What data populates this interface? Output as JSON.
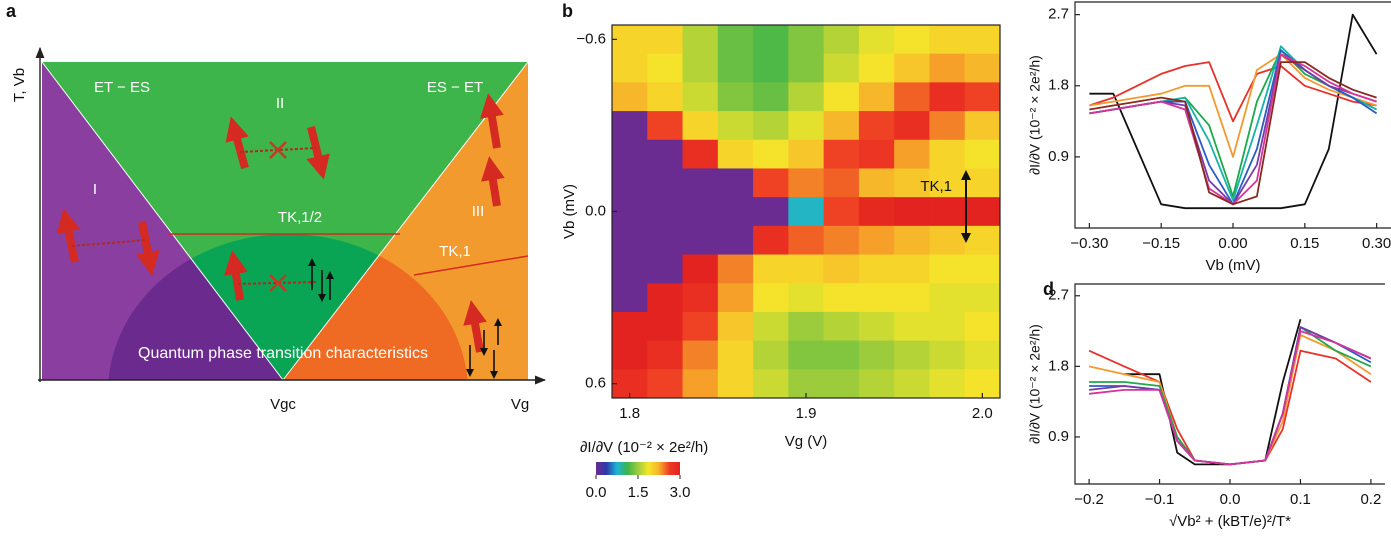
{
  "diagram": {
    "label": "a",
    "y_axis": "T, Vb",
    "x_axis": "Vg",
    "critical": "Vgc",
    "boundary_left": "ET − ES",
    "boundary_right": "ES − ET",
    "regions": [
      "I",
      "II",
      "III"
    ],
    "kondo_half": "TK,1/2",
    "kondo_one": "TK,1",
    "qpt": "Quantum phase transition characteristics"
  },
  "chart_data": [
    {
      "type": "heatmap",
      "panel": "b",
      "x": [
        1.8,
        1.82,
        1.84,
        1.86,
        1.88,
        1.9,
        1.92,
        1.94,
        1.96,
        1.98,
        2.0
      ],
      "y": [
        -0.6,
        -0.5,
        -0.4,
        -0.3,
        -0.2,
        -0.1,
        0,
        0.1,
        0.2,
        0.3,
        0.4,
        0.5,
        0.6
      ],
      "z": [
        [
          2.0,
          2.0,
          1.6,
          1.3,
          1.2,
          1.4,
          1.6,
          1.8,
          1.9,
          2.0,
          2.0
        ],
        [
          2.0,
          1.9,
          1.6,
          1.3,
          1.2,
          1.4,
          1.7,
          1.9,
          2.1,
          2.3,
          2.2
        ],
        [
          2.2,
          2.0,
          1.7,
          1.4,
          1.3,
          1.6,
          1.9,
          2.2,
          2.5,
          2.8,
          2.6
        ],
        [
          0.0,
          2.6,
          2.0,
          1.7,
          1.6,
          1.8,
          2.2,
          2.6,
          2.8,
          2.4,
          2.1
        ],
        [
          0.0,
          0.0,
          2.8,
          2.0,
          1.9,
          2.1,
          2.6,
          2.7,
          2.3,
          2.0,
          1.9
        ],
        [
          0.0,
          0.0,
          0.0,
          0.0,
          2.6,
          2.4,
          2.5,
          2.2,
          2.1,
          2.0,
          2.0
        ],
        [
          0.0,
          0.0,
          0.0,
          0.0,
          0.0,
          0.8,
          2.6,
          2.9,
          3.0,
          3.0,
          3.0
        ],
        [
          0.0,
          0.0,
          0.0,
          0.0,
          2.8,
          2.5,
          2.4,
          2.3,
          2.2,
          2.1,
          2.0
        ],
        [
          0.0,
          0.0,
          3.0,
          2.4,
          2.0,
          2.0,
          2.1,
          2.0,
          2.0,
          1.9,
          1.9
        ],
        [
          0.0,
          3.0,
          2.8,
          2.3,
          1.9,
          1.8,
          1.9,
          1.9,
          1.9,
          1.8,
          1.8
        ],
        [
          3.0,
          3.0,
          2.6,
          2.1,
          1.7,
          1.5,
          1.6,
          1.7,
          1.8,
          1.8,
          1.9
        ],
        [
          3.0,
          2.8,
          2.4,
          2.0,
          1.6,
          1.4,
          1.4,
          1.5,
          1.6,
          1.7,
          1.8
        ],
        [
          2.8,
          2.6,
          2.3,
          2.0,
          1.7,
          1.5,
          1.5,
          1.6,
          1.7,
          1.8,
          1.9
        ]
      ],
      "xlim": [
        1.79,
        2.01
      ],
      "ylim": [
        0.65,
        -0.65
      ],
      "xticks": [
        1.8,
        1.9,
        {
          "value": 2.0,
          "label": "2.0"
        }
      ],
      "yticks": [
        {
          "value": -0.6,
          "label": "−0.6"
        },
        {
          "value": 0,
          "label": "0.0"
        },
        0.6
      ],
      "xlabel": "Vg (V)",
      "ylabel": "Vb (mV)",
      "annotation": "TK,1",
      "colorbar": {
        "label": "∂I/∂V (10⁻² × 2e²/h)",
        "lim": [
          0,
          3
        ],
        "colors": [
          "#6a2c91",
          "#2b3aa8",
          "#1fb5d6",
          "#3cb44a",
          "#9ccc3c",
          "#f5e62a",
          "#f7b02a",
          "#ee3a24",
          "#e2231f"
        ],
        "ticks": [
          {
            "value": 0,
            "label": "0.0"
          },
          1.5,
          {
            "value": 3,
            "label": "3.0"
          }
        ]
      }
    },
    {
      "type": "line",
      "x": [
        -0.3,
        -0.25,
        -0.2,
        -0.15,
        -0.1,
        -0.05,
        0,
        0.05,
        0.1,
        0.15,
        0.2,
        0.25,
        0.3
      ],
      "series": [
        {
          "color": "#111111",
          "values": [
            1.7,
            1.7,
            1.0,
            0.3,
            0.25,
            0.25,
            0.25,
            0.25,
            0.25,
            0.3,
            1.0,
            2.7,
            2.2
          ]
        },
        {
          "color": "#e8312a",
          "values": [
            1.55,
            1.65,
            1.8,
            1.95,
            2.05,
            2.1,
            1.35,
            1.95,
            2.05,
            1.8,
            1.7,
            1.6,
            1.55
          ]
        },
        {
          "color": "#f39a2f",
          "values": [
            1.55,
            1.6,
            1.65,
            1.7,
            1.8,
            1.8,
            0.9,
            2.0,
            2.2,
            1.9,
            1.75,
            1.65,
            1.55
          ]
        },
        {
          "color": "#1ea84a",
          "values": [
            1.45,
            1.5,
            1.55,
            1.6,
            1.65,
            1.3,
            0.4,
            1.6,
            2.25,
            1.95,
            1.8,
            1.65,
            1.5
          ]
        },
        {
          "color": "#16b3a8",
          "values": [
            1.45,
            1.5,
            1.55,
            1.6,
            1.65,
            1.1,
            0.35,
            1.3,
            2.3,
            2.0,
            1.8,
            1.65,
            1.5
          ]
        },
        {
          "color": "#2a5cc8",
          "values": [
            1.45,
            1.5,
            1.55,
            1.6,
            1.6,
            0.8,
            0.3,
            1.0,
            2.25,
            2.0,
            1.8,
            1.65,
            1.45
          ]
        },
        {
          "color": "#7a3aa8",
          "values": [
            1.45,
            1.5,
            1.55,
            1.6,
            1.55,
            0.6,
            0.3,
            0.8,
            2.2,
            2.0,
            1.8,
            1.7,
            1.6
          ]
        },
        {
          "color": "#d4359a",
          "values": [
            1.45,
            1.5,
            1.55,
            1.6,
            1.5,
            0.5,
            0.3,
            0.6,
            2.2,
            2.05,
            1.85,
            1.7,
            1.6
          ]
        },
        {
          "color": "#8a2a1e",
          "values": [
            1.5,
            1.55,
            1.6,
            1.65,
            1.6,
            0.45,
            0.3,
            0.4,
            2.1,
            2.1,
            1.9,
            1.75,
            1.65
          ]
        }
      ],
      "xlim": [
        -0.33,
        0.33
      ],
      "ylim": [
        0,
        2.86
      ],
      "xticks": [
        {
          "value": -0.3,
          "label": "−0.30"
        },
        {
          "value": -0.15,
          "label": "−0.15"
        },
        {
          "value": 0,
          "label": "0.00"
        },
        0.15,
        {
          "value": 0.3,
          "label": "0.30"
        }
      ],
      "yticks": [
        0.9,
        1.8,
        2.7
      ],
      "xlabel": "Vb (mV)",
      "ylabel": "∂I/∂V (10⁻² × 2e²/h)"
    },
    {
      "type": "line",
      "panel": "d",
      "x": [
        -0.2,
        -0.15,
        -0.1,
        -0.075,
        -0.05,
        0,
        0.05,
        0.075,
        0.1,
        0.15,
        0.2
      ],
      "series": [
        {
          "color": "#111111",
          "values": [
            null,
            1.7,
            1.7,
            0.7,
            0.55,
            0.55,
            0.6,
            1.6,
            2.4,
            null,
            null
          ]
        },
        {
          "color": "#e8312a",
          "values": [
            2.0,
            1.8,
            1.6,
            1.0,
            0.6,
            0.55,
            0.6,
            1.0,
            2.0,
            1.9,
            1.6
          ]
        },
        {
          "color": "#f39a2f",
          "values": [
            1.8,
            1.7,
            1.6,
            0.9,
            0.6,
            0.55,
            0.6,
            1.1,
            2.2,
            2.0,
            1.7
          ]
        },
        {
          "color": "#1ea84a",
          "values": [
            1.6,
            1.6,
            1.55,
            0.9,
            0.6,
            0.55,
            0.6,
            1.2,
            2.3,
            2.0,
            1.8
          ]
        },
        {
          "color": "#2a5cc8",
          "values": [
            1.55,
            1.55,
            1.5,
            0.85,
            0.6,
            0.55,
            0.6,
            1.2,
            2.3,
            2.1,
            1.85
          ]
        },
        {
          "color": "#7a3aa8",
          "values": [
            1.5,
            1.55,
            1.5,
            0.85,
            0.6,
            0.55,
            0.6,
            1.2,
            2.3,
            2.1,
            1.9
          ]
        },
        {
          "color": "#d4359a",
          "values": [
            1.45,
            1.5,
            1.5,
            0.85,
            0.6,
            0.55,
            0.6,
            1.2,
            2.25,
            2.1,
            1.9
          ]
        }
      ],
      "xlim": [
        -0.22,
        0.22
      ],
      "ylim": [
        0.3,
        2.85
      ],
      "xticks": [
        {
          "value": -0.2,
          "label": "−0.2"
        },
        {
          "value": -0.1,
          "label": "−0.1"
        },
        {
          "value": 0,
          "label": "0.0"
        },
        0.1,
        0.2
      ],
      "yticks": [
        0.9,
        1.8,
        2.7
      ],
      "xlabel": "√Vb² + (kBT/e)²/T*",
      "ylabel": "∂I/∂V (10⁻² × 2e²/h)"
    }
  ]
}
